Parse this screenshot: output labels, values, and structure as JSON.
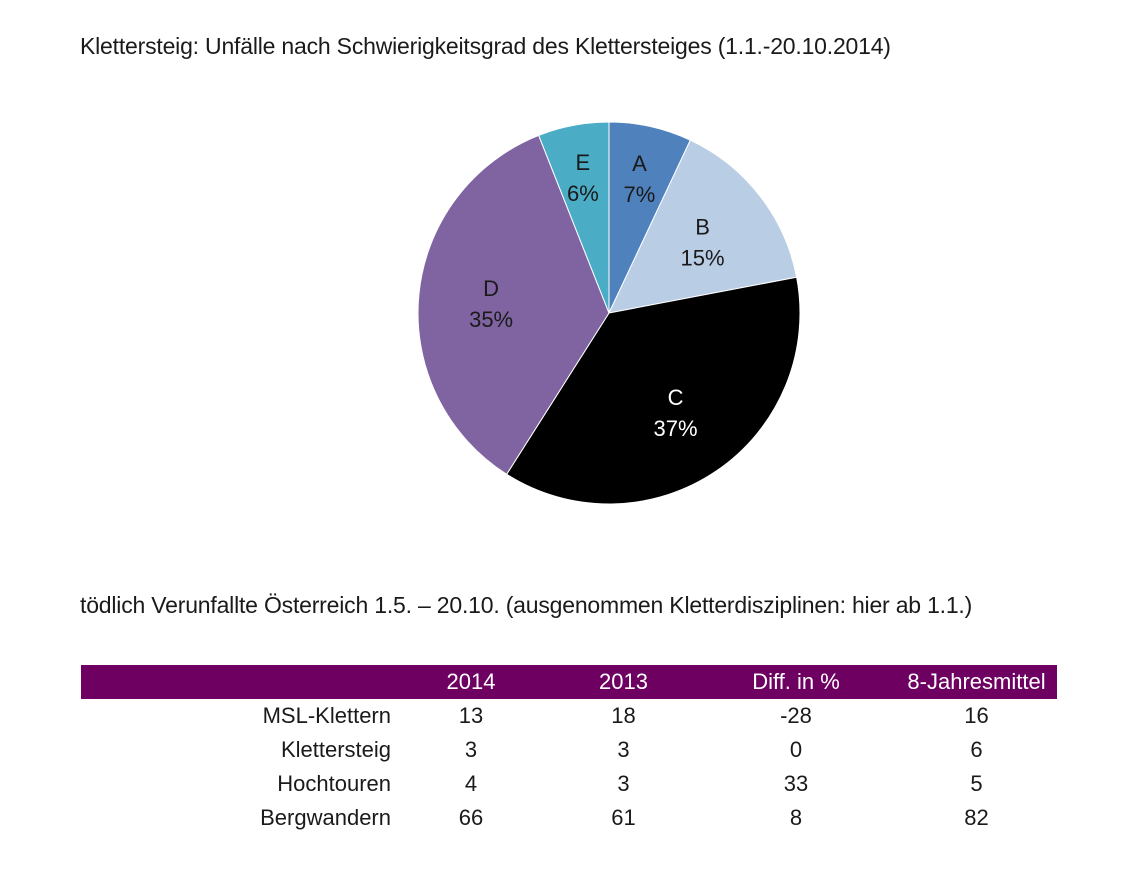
{
  "chart_data": {
    "type": "pie",
    "title": "Klettersteig: Unfälle nach Schwierigkeitsgrad des Klettersteiges (1.1.-20.10.2014)",
    "start": "top",
    "direction": "clockwise",
    "slices": [
      {
        "label": "A",
        "value": 7,
        "value_label": "7%",
        "color": "#4f81bd",
        "text_color": "#1a1a1a"
      },
      {
        "label": "B",
        "value": 15,
        "value_label": "15%",
        "color": "#b9cde5",
        "text_color": "#1a1a1a"
      },
      {
        "label": "C",
        "value": 37,
        "value_label": "37%",
        "color": "#000000",
        "text_color": "#ffffff"
      },
      {
        "label": "D",
        "value": 35,
        "value_label": "35%",
        "color": "#8064a2",
        "text_color": "#1a1a1a"
      },
      {
        "label": "E",
        "value": 6,
        "value_label": "6%",
        "color": "#4bacc6",
        "text_color": "#1a1a1a"
      }
    ],
    "legend": "none"
  },
  "table": {
    "subtitle": "tödlich Verunfallte Österreich 1.5. – 20.10. (ausgenommen Kletterdisziplinen: hier ab 1.1.)",
    "header_color": "#6d0060",
    "columns": [
      "",
      "2014",
      "2013",
      "Diff. in %",
      "8-Jahresmittel"
    ],
    "rows": [
      {
        "label": "MSL-Klettern",
        "values": [
          "13",
          "18",
          "-28",
          "16"
        ]
      },
      {
        "label": "Klettersteig",
        "values": [
          "3",
          "3",
          "0",
          "6"
        ]
      },
      {
        "label": "Hochtouren",
        "values": [
          "4",
          "3",
          "33",
          "5"
        ]
      },
      {
        "label": "Bergwandern",
        "values": [
          "66",
          "61",
          "8",
          "82"
        ]
      }
    ]
  }
}
